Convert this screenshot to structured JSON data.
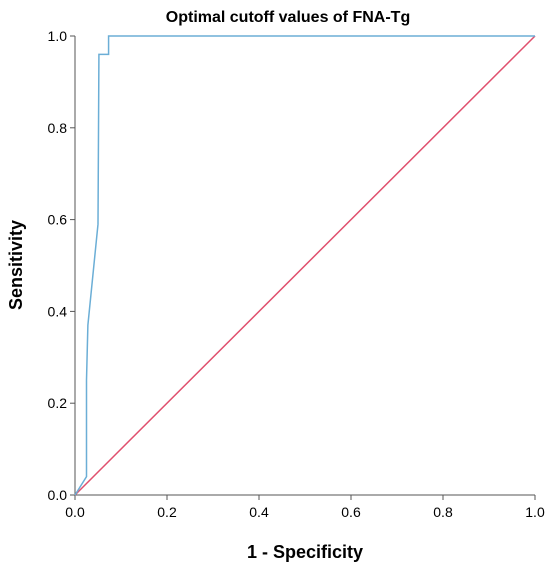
{
  "chart_data": {
    "type": "line",
    "title": "Optimal cutoff values of FNA-Tg",
    "xlabel": "1 - Specificity",
    "ylabel": "Sensitivity",
    "xlim": [
      0.0,
      1.0
    ],
    "ylim": [
      0.0,
      1.0
    ],
    "x_ticks": [
      "0.0",
      "0.2",
      "0.4",
      "0.6",
      "0.8",
      "1.0"
    ],
    "y_ticks": [
      "0.0",
      "0.2",
      "0.4",
      "0.6",
      "0.8",
      "1.0"
    ],
    "grid": false,
    "legend": "none",
    "series": [
      {
        "color": "#6baed6",
        "x": [
          0.0,
          0.025,
          0.025,
          0.028,
          0.028,
          0.05,
          0.052,
          0.052,
          0.073,
          0.073,
          1.0
        ],
        "y": [
          0.0,
          0.04,
          0.25,
          0.37,
          0.37,
          0.59,
          0.96,
          0.96,
          0.96,
          1.0,
          1.0
        ]
      },
      {
        "color": "#e0506e",
        "x": [
          0.0,
          1.0
        ],
        "y": [
          0.0,
          1.0
        ]
      }
    ]
  }
}
